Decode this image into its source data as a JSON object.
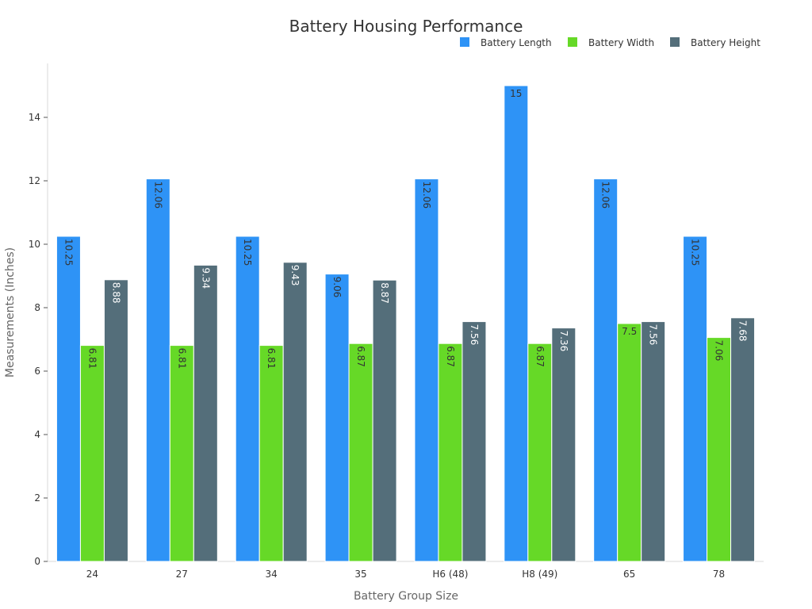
{
  "chart_data": {
    "type": "bar",
    "title": "Battery Housing Performance",
    "xlabel": "Battery Group Size",
    "ylabel": "Measurements (Inches)",
    "categories": [
      "24",
      "27",
      "34",
      "35",
      "H6 (48)",
      "H8 (49)",
      "65",
      "78"
    ],
    "ylim": [
      0,
      15.7
    ],
    "yticks": [
      0,
      2,
      4,
      6,
      8,
      10,
      12,
      14
    ],
    "legend_position": "top-right",
    "grid": false,
    "series": [
      {
        "name": "Battery Length",
        "color": "#2e93f6",
        "label_color": "#333333",
        "values": [
          10.25,
          12.06,
          10.25,
          9.06,
          12.06,
          15,
          12.06,
          10.25
        ]
      },
      {
        "name": "Battery Width",
        "color": "#66d927",
        "label_color": "#333333",
        "values": [
          6.81,
          6.81,
          6.81,
          6.87,
          6.87,
          6.87,
          7.5,
          7.06
        ]
      },
      {
        "name": "Battery Height",
        "color": "#546e7a",
        "label_color": "#ffffff",
        "values": [
          8.88,
          9.34,
          9.43,
          8.87,
          7.56,
          7.36,
          7.56,
          7.68
        ]
      }
    ]
  }
}
